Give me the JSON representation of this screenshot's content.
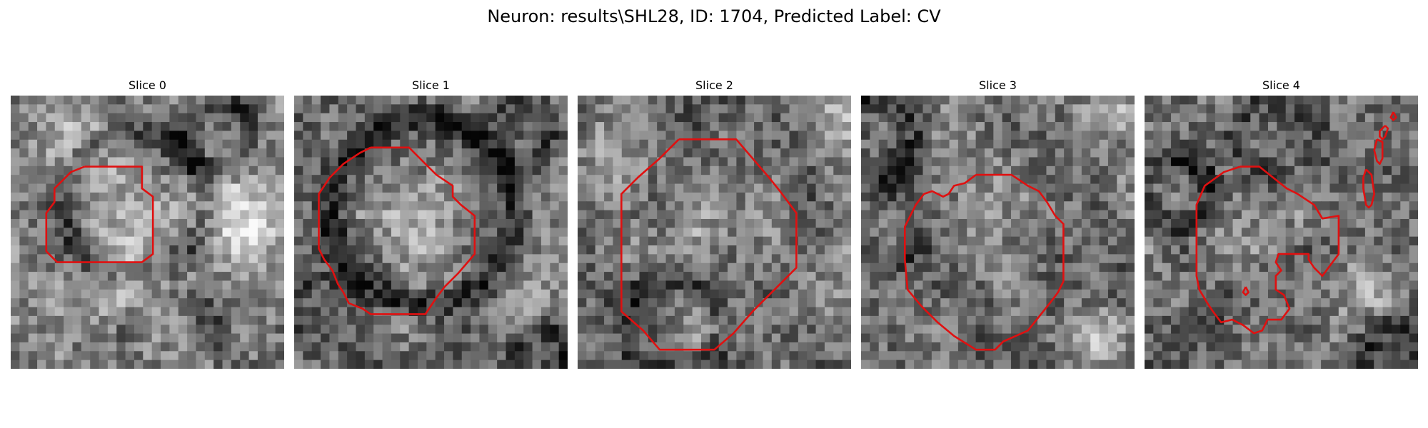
{
  "figure": {
    "title": "Neuron: results\\SHL28, ID: 1704, Predicted Label: CV"
  },
  "colors": {
    "contour": "#e01010",
    "background": "#ffffff"
  },
  "panels": [
    {
      "title": "Slice 0"
    },
    {
      "title": "Slice 1"
    },
    {
      "title": "Slice 2"
    },
    {
      "title": "Slice 3"
    },
    {
      "title": "Slice 4"
    }
  ]
}
